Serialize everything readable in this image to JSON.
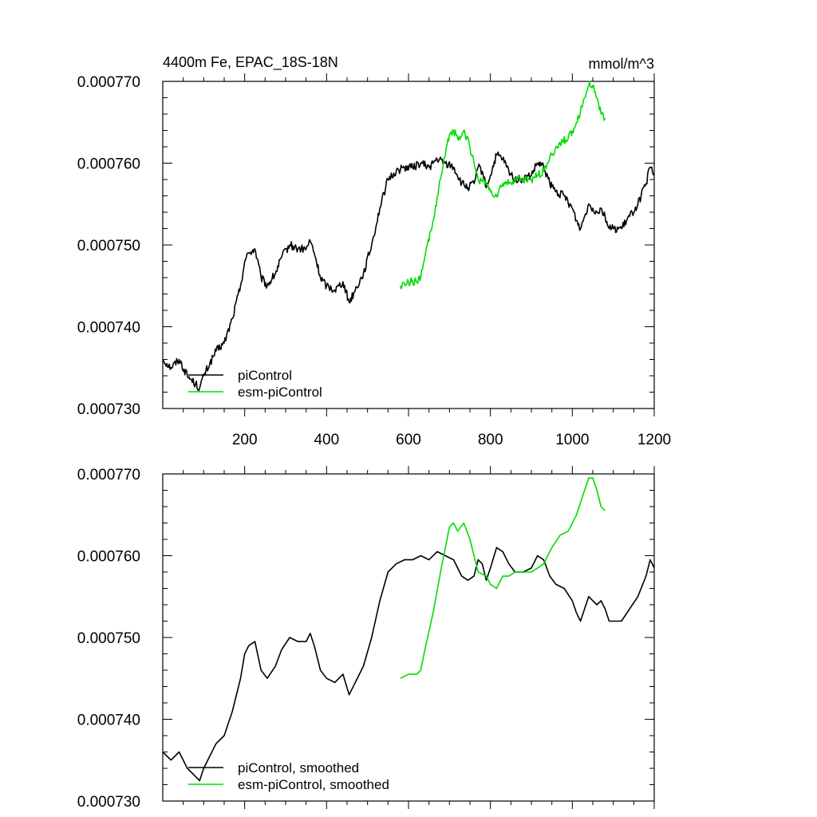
{
  "colors": {
    "piControl": "#000000",
    "esm": "#00dd00",
    "axis": "#000000"
  },
  "chart_data": [
    {
      "type": "line",
      "title_left": "4400m Fe, EPAC_18S-18N",
      "title_right": "mmol/m^3",
      "xlim": [
        0,
        1200
      ],
      "ylim": [
        0.00073,
        0.00077
      ],
      "xticks": [
        200,
        400,
        600,
        800,
        1000,
        1200
      ],
      "xtick_labels": [
        "200",
        "400",
        "600",
        "800",
        "1000",
        "1200"
      ],
      "yticks": [
        0.00073,
        0.00074,
        0.00075,
        0.00076,
        0.00077
      ],
      "ytick_labels": [
        "0.000730",
        "0.000740",
        "0.000750",
        "0.000760",
        "0.000770"
      ],
      "noise": 5e-07,
      "series": [
        {
          "name": "piControl",
          "color": "#000000",
          "x": [
            0,
            20,
            40,
            60,
            80,
            90,
            100,
            115,
            130,
            150,
            170,
            190,
            200,
            210,
            225,
            240,
            255,
            275,
            290,
            310,
            330,
            350,
            360,
            370,
            385,
            400,
            420,
            440,
            455,
            470,
            490,
            510,
            530,
            550,
            570,
            590,
            610,
            630,
            650,
            670,
            690,
            710,
            730,
            745,
            760,
            770,
            780,
            790,
            800,
            815,
            830,
            845,
            860,
            880,
            900,
            915,
            930,
            945,
            960,
            980,
            1000,
            1010,
            1020,
            1030,
            1040,
            1050,
            1060,
            1070,
            1080,
            1090,
            1100,
            1120,
            1140,
            1160,
            1180,
            1190,
            1200
          ],
          "y": [
            0.000736,
            0.000735,
            0.000736,
            0.000734,
            0.000733,
            0.0007325,
            0.000734,
            0.0007355,
            0.000737,
            0.000738,
            0.000741,
            0.000745,
            0.000748,
            0.000749,
            0.0007495,
            0.000746,
            0.000745,
            0.0007465,
            0.0007485,
            0.00075,
            0.0007495,
            0.0007495,
            0.0007505,
            0.000749,
            0.000746,
            0.000745,
            0.0007445,
            0.0007455,
            0.000743,
            0.0007445,
            0.0007465,
            0.00075,
            0.0007545,
            0.000758,
            0.000759,
            0.0007595,
            0.0007595,
            0.00076,
            0.0007595,
            0.0007605,
            0.00076,
            0.0007595,
            0.0007575,
            0.000757,
            0.0007575,
            0.0007595,
            0.000759,
            0.000757,
            0.0007585,
            0.000761,
            0.0007605,
            0.000759,
            0.000758,
            0.000758,
            0.0007585,
            0.00076,
            0.0007595,
            0.0007575,
            0.0007565,
            0.000756,
            0.0007545,
            0.000753,
            0.000752,
            0.0007535,
            0.000755,
            0.0007545,
            0.000754,
            0.0007545,
            0.0007535,
            0.000752,
            0.000752,
            0.000752,
            0.0007535,
            0.000755,
            0.0007575,
            0.0007595,
            0.0007585
          ]
        },
        {
          "name": "esm-piControl",
          "color": "#00dd00",
          "x": [
            580,
            600,
            620,
            630,
            640,
            660,
            680,
            690,
            700,
            710,
            720,
            735,
            750,
            760,
            770,
            790,
            800,
            815,
            830,
            845,
            860,
            880,
            900,
            915,
            930,
            950,
            970,
            990,
            1010,
            1030,
            1040,
            1050,
            1060,
            1070,
            1080
          ],
          "y": [
            0.000745,
            0.0007455,
            0.0007455,
            0.000746,
            0.0007485,
            0.000753,
            0.0007585,
            0.000761,
            0.0007635,
            0.000764,
            0.000763,
            0.000764,
            0.000762,
            0.00076,
            0.000758,
            0.0007575,
            0.0007565,
            0.000756,
            0.0007575,
            0.0007575,
            0.000758,
            0.000758,
            0.000758,
            0.0007585,
            0.000759,
            0.000761,
            0.0007625,
            0.000763,
            0.000765,
            0.000768,
            0.0007695,
            0.0007695,
            0.000768,
            0.000766,
            0.0007655
          ]
        }
      ],
      "legend": {
        "entries": [
          "piControl",
          "esm-piControl"
        ],
        "location": "bottom-left"
      }
    },
    {
      "type": "line",
      "xlim": [
        0,
        1200
      ],
      "ylim": [
        0.00073,
        0.00077
      ],
      "xticks": [
        200,
        400,
        600,
        800,
        1000,
        1200
      ],
      "yticks": [
        0.00073,
        0.00074,
        0.00075,
        0.00076,
        0.00077
      ],
      "ytick_labels": [
        "0.000730",
        "0.000740",
        "0.000750",
        "0.000760",
        "0.000770"
      ],
      "noise": 0,
      "series": [
        {
          "name": "piControl, smoothed",
          "color": "#000000",
          "x": [
            0,
            20,
            40,
            60,
            80,
            90,
            100,
            115,
            130,
            150,
            170,
            190,
            200,
            210,
            225,
            240,
            255,
            275,
            290,
            310,
            330,
            350,
            360,
            370,
            385,
            400,
            420,
            440,
            455,
            470,
            490,
            510,
            530,
            550,
            570,
            590,
            610,
            630,
            650,
            670,
            690,
            710,
            730,
            745,
            760,
            770,
            780,
            790,
            800,
            815,
            830,
            845,
            860,
            880,
            900,
            915,
            930,
            945,
            960,
            980,
            1000,
            1010,
            1020,
            1030,
            1040,
            1050,
            1060,
            1070,
            1080,
            1090,
            1100,
            1120,
            1140,
            1160,
            1180,
            1190,
            1200
          ],
          "y": [
            0.000736,
            0.000735,
            0.000736,
            0.000734,
            0.000733,
            0.0007325,
            0.000734,
            0.0007355,
            0.000737,
            0.000738,
            0.000741,
            0.000745,
            0.000748,
            0.000749,
            0.0007495,
            0.000746,
            0.000745,
            0.0007465,
            0.0007485,
            0.00075,
            0.0007495,
            0.0007495,
            0.0007505,
            0.000749,
            0.000746,
            0.000745,
            0.0007445,
            0.0007455,
            0.000743,
            0.0007445,
            0.0007465,
            0.00075,
            0.0007545,
            0.000758,
            0.000759,
            0.0007595,
            0.0007595,
            0.00076,
            0.0007595,
            0.0007605,
            0.00076,
            0.0007595,
            0.0007575,
            0.000757,
            0.0007575,
            0.0007595,
            0.000759,
            0.000757,
            0.0007585,
            0.000761,
            0.0007605,
            0.000759,
            0.000758,
            0.000758,
            0.0007585,
            0.00076,
            0.0007595,
            0.0007575,
            0.0007565,
            0.000756,
            0.0007545,
            0.000753,
            0.000752,
            0.0007535,
            0.000755,
            0.0007545,
            0.000754,
            0.0007545,
            0.0007535,
            0.000752,
            0.000752,
            0.000752,
            0.0007535,
            0.000755,
            0.0007575,
            0.0007595,
            0.0007585
          ]
        },
        {
          "name": "esm-piControl, smoothed",
          "color": "#00dd00",
          "x": [
            580,
            600,
            620,
            630,
            640,
            660,
            680,
            690,
            700,
            710,
            720,
            735,
            750,
            760,
            770,
            790,
            800,
            815,
            830,
            845,
            860,
            880,
            900,
            915,
            930,
            950,
            970,
            990,
            1010,
            1030,
            1040,
            1050,
            1060,
            1070,
            1080
          ],
          "y": [
            0.000745,
            0.0007455,
            0.0007455,
            0.000746,
            0.0007485,
            0.000753,
            0.0007585,
            0.000761,
            0.0007635,
            0.000764,
            0.000763,
            0.000764,
            0.000762,
            0.00076,
            0.000758,
            0.0007575,
            0.0007565,
            0.000756,
            0.0007575,
            0.0007575,
            0.000758,
            0.000758,
            0.000758,
            0.0007585,
            0.000759,
            0.000761,
            0.0007625,
            0.000763,
            0.000765,
            0.000768,
            0.0007695,
            0.0007695,
            0.000768,
            0.000766,
            0.0007655
          ]
        }
      ],
      "legend": {
        "entries": [
          "piControl, smoothed",
          "esm-piControl, smoothed"
        ],
        "location": "bottom-left"
      }
    }
  ]
}
